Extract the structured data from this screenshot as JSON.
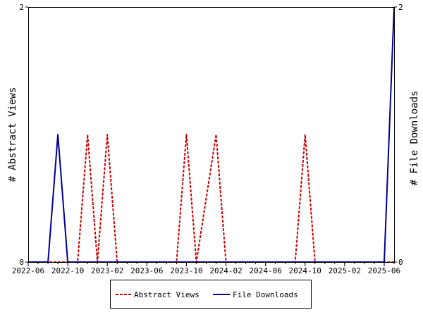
{
  "chart_data": {
    "type": "line",
    "ylabel_left": "# Abstract Views",
    "ylabel_right": "# File Downloads",
    "x_ticks": [
      "2022-06",
      "2022-10",
      "2023-02",
      "2023-06",
      "2023-10",
      "2024-02",
      "2024-06",
      "2024-10",
      "2025-02",
      "2025-06"
    ],
    "ylim_left": [
      0,
      2
    ],
    "ylim_right": [
      0,
      2
    ],
    "y_ticks_left": [
      "0",
      "2"
    ],
    "y_ticks_right": [
      "0",
      "2"
    ],
    "x_range": [
      "2022-06",
      "2025-07"
    ],
    "grid": false,
    "legend_position": "bottom",
    "series": [
      {
        "name": "Abstract Views",
        "color": "#cc0000",
        "style": "dashed",
        "points": [
          [
            "2022-06",
            0
          ],
          [
            "2022-11",
            0
          ],
          [
            "2022-12",
            1
          ],
          [
            "2023-01",
            0
          ],
          [
            "2023-02",
            1
          ],
          [
            "2023-03",
            0
          ],
          [
            "2023-09",
            0
          ],
          [
            "2023-10",
            1
          ],
          [
            "2023-11",
            0
          ],
          [
            "2024-01",
            1
          ],
          [
            "2024-02",
            0
          ],
          [
            "2024-09",
            0
          ],
          [
            "2024-10",
            1
          ],
          [
            "2024-11",
            0
          ],
          [
            "2025-07",
            0
          ]
        ]
      },
      {
        "name": "File Downloads",
        "color": "#000099",
        "style": "solid",
        "points": [
          [
            "2022-06",
            0
          ],
          [
            "2022-08",
            0
          ],
          [
            "2022-09",
            1
          ],
          [
            "2022-10",
            0
          ],
          [
            "2025-06",
            0
          ],
          [
            "2025-07",
            2
          ]
        ]
      }
    ]
  }
}
